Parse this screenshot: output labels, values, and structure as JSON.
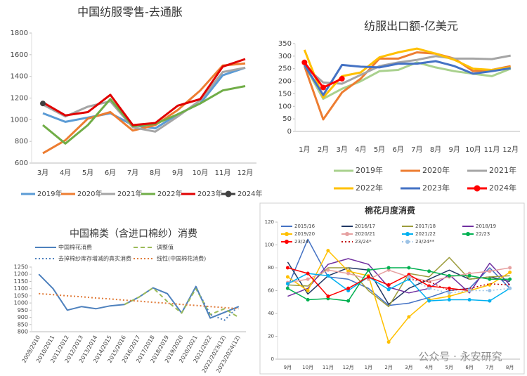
{
  "chart_data": [
    {
      "type": "line",
      "title": "中国纺服零售-去通胀",
      "legend": "bottom",
      "categories": [
        "3月",
        "4月",
        "5月",
        "6月",
        "7月",
        "8月",
        "9月",
        "10月",
        "11月",
        "12月"
      ],
      "ylim": [
        600,
        1800
      ],
      "yticks": [
        600,
        800,
        1000,
        1200,
        1400,
        1600,
        1800
      ],
      "series": [
        {
          "name": "2019年",
          "color": "#5b9bd5",
          "values": [
            1060,
            980,
            1020,
            1060,
            950,
            920,
            1050,
            1150,
            1410,
            1480
          ]
        },
        {
          "name": "2020年",
          "color": "#ed7d31",
          "values": [
            690,
            810,
            1010,
            1070,
            900,
            950,
            1090,
            1270,
            1500,
            1520
          ]
        },
        {
          "name": "2021年",
          "color": "#a5a5a5",
          "values": [
            1140,
            1030,
            1120,
            1170,
            930,
            890,
            1030,
            1180,
            1440,
            1480
          ]
        },
        {
          "name": "2022年",
          "color": "#70ad47",
          "values": [
            950,
            780,
            950,
            1190,
            940,
            960,
            1050,
            1150,
            1270,
            1310
          ]
        },
        {
          "name": "2023年",
          "color": "#e00000",
          "values": [
            1160,
            1040,
            1070,
            1230,
            950,
            970,
            1130,
            1190,
            1490,
            1560
          ]
        },
        {
          "name": "2024年",
          "color": "#404040",
          "marker": true,
          "values": [
            1150,
            null,
            null,
            null,
            null,
            null,
            null,
            null,
            null,
            null
          ]
        }
      ]
    },
    {
      "type": "line",
      "title": "纺服出口额-亿美元",
      "legend": "bottom",
      "categories": [
        "1月",
        "2月",
        "3月",
        "4月",
        "5月",
        "6月",
        "7月",
        "8月",
        "9月",
        "10月",
        "11月",
        "12月"
      ],
      "ylim": [
        0,
        350
      ],
      "yticks": [
        0,
        50,
        100,
        150,
        200,
        250,
        300,
        350
      ],
      "series": [
        {
          "name": "2019年",
          "color": "#a9d18e",
          "values": [
            265,
            130,
            170,
            200,
            240,
            245,
            275,
            255,
            240,
            230,
            220,
            250
          ]
        },
        {
          "name": "2020年",
          "color": "#ed7d31",
          "values": [
            260,
            48,
            155,
            210,
            290,
            290,
            315,
            310,
            290,
            240,
            245,
            260
          ]
        },
        {
          "name": "2021年",
          "color": "#a5a5a5",
          "values": [
            260,
            195,
            190,
            225,
            260,
            275,
            285,
            300,
            290,
            290,
            288,
            302
          ]
        },
        {
          "name": "2022年",
          "color": "#ffc000",
          "values": [
            325,
            135,
            220,
            235,
            295,
            315,
            330,
            310,
            285,
            250,
            245,
            255
          ]
        },
        {
          "name": "2023年",
          "color": "#4472c4",
          "values": [
            265,
            145,
            265,
            258,
            255,
            270,
            270,
            280,
            260,
            230,
            240,
            252
          ]
        },
        {
          "name": "2024年",
          "color": "#ff0000",
          "marker": true,
          "values": [
            275,
            175,
            210,
            null,
            null,
            null,
            null,
            null,
            null,
            null,
            null,
            null
          ]
        }
      ]
    },
    {
      "type": "line",
      "title": "中国棉类（含进口棉纱）消费",
      "legend": "top",
      "categories": [
        "2009/2010",
        "2010/2011",
        "2011/2012",
        "2012/2013",
        "2013/2014",
        "2014/2015",
        "2015/2016",
        "2016/2017",
        "2017/2018",
        "2018/2019",
        "2019/2020",
        "2020/2021",
        "2021/2022",
        "2022/2023(12)",
        "2023/2024(12)"
      ],
      "ylim": [
        800,
        1250
      ],
      "yticks": [
        800,
        850,
        900,
        950,
        1000,
        1050,
        1100,
        1150,
        1200,
        1250
      ],
      "series": [
        {
          "name": "中国棉花消费",
          "color": "#4e81bd",
          "values": [
            1200,
            1100,
            950,
            975,
            960,
            980,
            990,
            1040,
            1105,
            1065,
            930,
            1115,
            895,
            935,
            975
          ]
        },
        {
          "name": "调整值",
          "color": "#9bbb59",
          "line_style": "dashed",
          "values": [
            null,
            null,
            null,
            null,
            null,
            null,
            990,
            1040,
            1105,
            1010,
            930,
            1100,
            920,
            960,
            900
          ]
        },
        {
          "name": "去掉棉纱库存增减的真实消费",
          "color": "#4e81bd",
          "line_style": "dotted",
          "values": [
            null,
            null,
            null,
            null,
            null,
            null,
            null,
            null,
            null,
            null,
            null,
            1110,
            920,
            880,
            980
          ]
        },
        {
          "name": "线性(中国棉花消费)",
          "color": "#e07b39",
          "line_style": "dotted",
          "values": [
            1065,
            1058,
            1050,
            1043,
            1035,
            1028,
            1020,
            1013,
            1005,
            998,
            990,
            983,
            975,
            968,
            960
          ]
        }
      ]
    },
    {
      "type": "line",
      "title": "棉花月度消费",
      "legend": "top",
      "categories": [
        "9月",
        "10月",
        "11月",
        "12月",
        "1月",
        "2月",
        "3月",
        "4月",
        "5月",
        "6月",
        "7月",
        "8月"
      ],
      "ylim": [
        0,
        120
      ],
      "yticks": [
        0,
        20,
        40,
        60,
        80,
        100,
        120
      ],
      "series": [
        {
          "name": "2015/16",
          "color": "#4472c4",
          "values": [
            63,
            105,
            72,
            70,
            62,
            47,
            49,
            54,
            60,
            62,
            80,
            62
          ]
        },
        {
          "name": "2016/17",
          "color": "#203864",
          "values": [
            85,
            57,
            73,
            80,
            78,
            48,
            62,
            70,
            78,
            70,
            72,
            68
          ]
        },
        {
          "name": "2017/18",
          "color": "#9c9c3c",
          "values": [
            65,
            64,
            80,
            80,
            60,
            46,
            75,
            72,
            89,
            70,
            72,
            73
          ]
        },
        {
          "name": "2018/19",
          "color": "#7030a0",
          "values": [
            55,
            62,
            83,
            88,
            83,
            63,
            58,
            62,
            74,
            58,
            84,
            65
          ]
        },
        {
          "name": "2019/20",
          "color": "#ffc000",
          "marker": true,
          "values": [
            72,
            60,
            95,
            77,
            73,
            15,
            37,
            52,
            55,
            60,
            65,
            76
          ]
        },
        {
          "name": "2020/21",
          "color": "#e6a0a0",
          "marker": true,
          "values": [
            67,
            70,
            78,
            75,
            70,
            78,
            72,
            68,
            72,
            75,
            77,
            80
          ]
        },
        {
          "name": "2021/22",
          "color": "#00b0f0",
          "marker": true,
          "values": [
            66,
            75,
            73,
            60,
            72,
            61,
            70,
            51,
            52,
            52,
            51,
            62
          ]
        },
        {
          "name": "22/23",
          "color": "#00b050",
          "marker": true,
          "values": [
            62,
            52,
            53,
            51,
            78,
            80,
            80,
            77,
            73,
            73,
            70,
            70
          ]
        },
        {
          "name": "23/24",
          "color": "#ff0000",
          "marker": true,
          "values": [
            80,
            75,
            55,
            62,
            72,
            65,
            74,
            64,
            62,
            60,
            null,
            null
          ]
        },
        {
          "name": "23/24*",
          "color": "#c00000",
          "line_style": "dotted",
          "values": [
            null,
            null,
            null,
            null,
            null,
            null,
            70,
            68,
            60,
            62,
            66,
            65
          ]
        },
        {
          "name": "23/24**",
          "color": "#9dc3e6",
          "line_style": "dotted",
          "marker": true,
          "values": [
            null,
            null,
            null,
            null,
            null,
            null,
            72,
            62,
            58,
            60,
            60,
            62
          ]
        }
      ]
    }
  ],
  "watermark": "公众号 · 永安研究"
}
